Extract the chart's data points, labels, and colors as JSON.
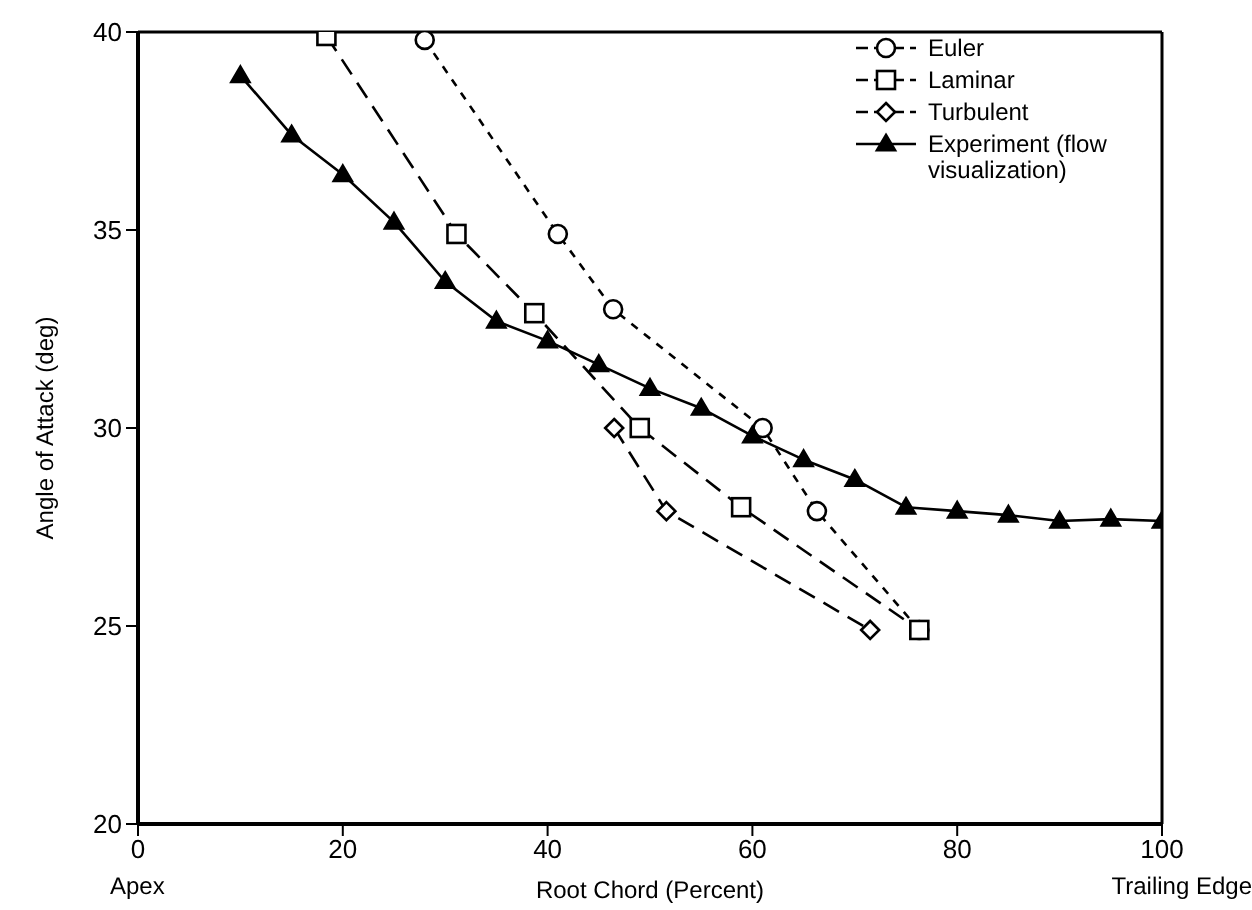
{
  "chart_data": {
    "type": "line",
    "xlabel": "Root Chord (Percent)",
    "ylabel": "Angle of Attack (deg)",
    "annotations": [
      "Apex",
      "Trailing Edge"
    ],
    "xlim": [
      0,
      100
    ],
    "xticks": [
      0,
      20,
      40,
      60,
      80,
      100
    ],
    "ylim": [
      20,
      40
    ],
    "yticks": [
      20,
      25,
      30,
      35,
      40
    ],
    "legend": "top right",
    "series": [
      {
        "name": "Euler",
        "color": "#000000",
        "marker": "circle",
        "line_style": "dotted",
        "x": [
          28,
          41,
          46.4,
          61,
          66.3,
          76.3
        ],
        "values": [
          39.8,
          34.9,
          33,
          30,
          27.9,
          24.9
        ]
      },
      {
        "name": "Laminar",
        "color": "#000000",
        "marker": "square",
        "line_style": "dashed",
        "x": [
          18.4,
          31.1,
          38.7,
          49,
          58.9,
          76.3
        ],
        "values": [
          39.9,
          34.9,
          32.9,
          30,
          28,
          24.9
        ]
      },
      {
        "name": "Turbulent",
        "color": "#000000",
        "marker": "diamond",
        "line_style": "dashed",
        "x": [
          46.5,
          51.6,
          71.5
        ],
        "values": [
          30,
          27.9,
          24.9
        ]
      },
      {
        "name": "Experiment (flow visualization)",
        "color": "#000000",
        "marker": "triangle",
        "line_style": "solid",
        "x": [
          10,
          15,
          20,
          25,
          30,
          35,
          40,
          45,
          50,
          55,
          60,
          65,
          70,
          75,
          80,
          85,
          90,
          95,
          100
        ],
        "values": [
          38.9,
          37.4,
          36.4,
          35.2,
          33.7,
          32.7,
          32.2,
          31.6,
          31,
          30.5,
          29.8,
          29.2,
          28.7,
          28,
          27.9,
          27.8,
          27.65,
          27.7,
          27.65
        ]
      }
    ]
  }
}
